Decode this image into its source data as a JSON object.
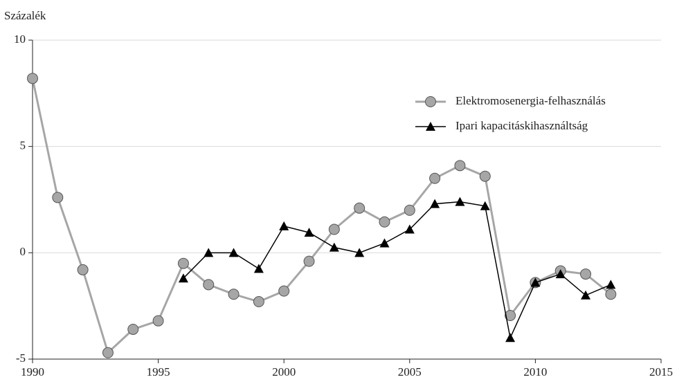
{
  "chart_data": {
    "type": "line",
    "y_label": "Százalék",
    "x": [
      1990,
      1991,
      1992,
      1993,
      1994,
      1995,
      1996,
      1997,
      1998,
      1999,
      2000,
      2001,
      2002,
      2003,
      2004,
      2005,
      2006,
      2007,
      2008,
      2009,
      2010,
      2011,
      2012,
      2013
    ],
    "series": [
      {
        "name": "Elektromosenergia-felhasználás",
        "color": "#a6a6a6",
        "marker": "circle",
        "values": [
          8.2,
          2.6,
          -0.8,
          -4.7,
          -3.6,
          -3.2,
          -0.5,
          -1.5,
          -1.95,
          -2.3,
          -1.8,
          -0.4,
          1.1,
          2.1,
          1.45,
          2.0,
          3.5,
          4.1,
          3.6,
          -2.95,
          -1.4,
          -0.85,
          -1.0,
          -1.95
        ]
      },
      {
        "name": "Ipari kapacitáskihasználtság",
        "color": "#000000",
        "marker": "triangle",
        "values": [
          null,
          null,
          null,
          null,
          null,
          null,
          -1.2,
          0,
          0,
          -0.75,
          1.25,
          0.95,
          0.25,
          0,
          0.45,
          1.1,
          2.3,
          2.4,
          2.2,
          -4.0,
          -1.4,
          -1.0,
          -2.0,
          -1.5
        ]
      }
    ],
    "xlim": [
      1990,
      2015
    ],
    "xticks": [
      1990,
      1995,
      2000,
      2005,
      2010,
      2015
    ],
    "ylim": [
      -5,
      10
    ],
    "yticks": [
      -5,
      0,
      5,
      10
    ],
    "grid": true,
    "legend": "upper-right"
  }
}
